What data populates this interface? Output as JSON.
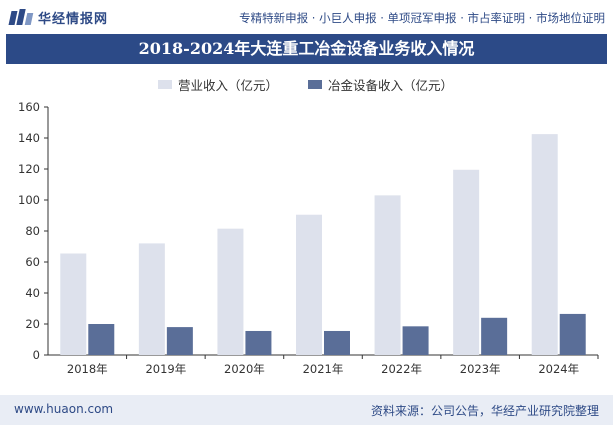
{
  "header": {
    "logo_text": "华经情报网",
    "tagline": "专精特新申报 · 小巨人申报 · 单项冠军申报 · 市占率证明 · 市场地位证明"
  },
  "footer": {
    "site": "www.huaon.com",
    "source": "资料来源：公司公告，华经产业研究院整理"
  },
  "colors": {
    "title_bg": "#2c4a87",
    "revenue": "#dde1ec",
    "metallurgy": "#5a6e98"
  },
  "chart_data": {
    "type": "bar",
    "title": "2018-2024年大连重工冶金设备业务收入情况",
    "categories": [
      "2018年",
      "2019年",
      "2020年",
      "2021年",
      "2022年",
      "2023年",
      "2024年"
    ],
    "series": [
      {
        "name": "营业收入（亿元）",
        "values": [
          65.5,
          72,
          81.5,
          90.5,
          103,
          119.5,
          142.5
        ]
      },
      {
        "name": "冶金设备收入（亿元）",
        "values": [
          20,
          18,
          15.5,
          15.5,
          18.5,
          24,
          26.5
        ]
      }
    ],
    "yticks": [
      0,
      20,
      40,
      60,
      80,
      100,
      120,
      140,
      160
    ],
    "ylim": [
      0,
      160
    ],
    "grid": false,
    "legend": "top"
  }
}
